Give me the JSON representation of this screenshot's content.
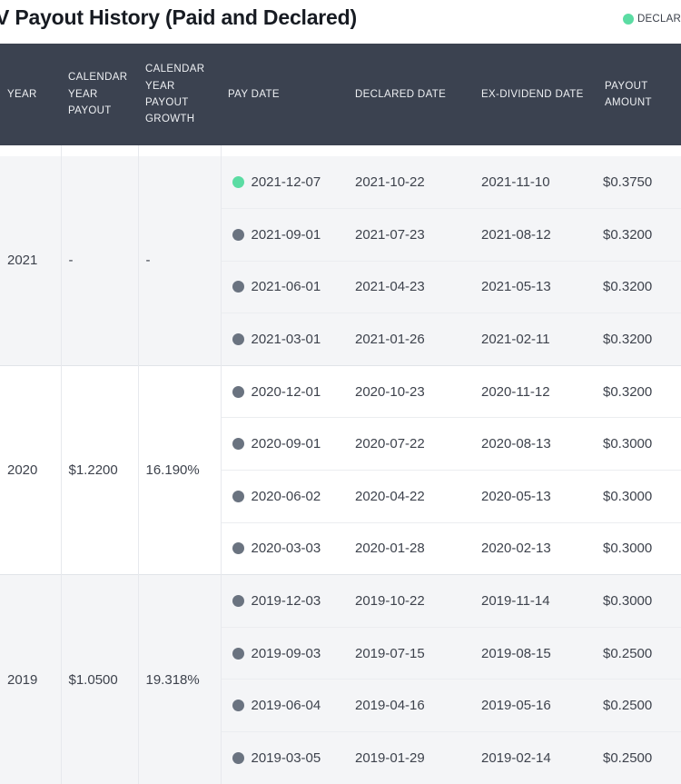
{
  "title": "V Payout History (Paid and Declared)",
  "legend": {
    "declared_label": "DECLARED"
  },
  "colors": {
    "header_bg": "#3b4250",
    "declared_dot": "#5bdca3",
    "paid_dot": "#6a7380",
    "group_shade_bg": "#f4f5f7"
  },
  "table": {
    "columns": [
      "YEAR",
      "CALENDAR YEAR PAYOUT",
      "CALENDAR YEAR PAYOUT GROWTH",
      "PAY DATE",
      "DECLARED DATE",
      "EX-DIVIDEND DATE",
      "PAYOUT AMOUNT"
    ],
    "groups": [
      {
        "year": "2021",
        "calendar_year_payout": "-",
        "calendar_year_payout_growth": "-",
        "rows": [
          {
            "status": "declared",
            "pay_date": "2021-12-07",
            "declared_date": "2021-10-22",
            "ex_dividend_date": "2021-11-10",
            "payout_amount": "$0.3750"
          },
          {
            "status": "paid",
            "pay_date": "2021-09-01",
            "declared_date": "2021-07-23",
            "ex_dividend_date": "2021-08-12",
            "payout_amount": "$0.3200"
          },
          {
            "status": "paid",
            "pay_date": "2021-06-01",
            "declared_date": "2021-04-23",
            "ex_dividend_date": "2021-05-13",
            "payout_amount": "$0.3200"
          },
          {
            "status": "paid",
            "pay_date": "2021-03-01",
            "declared_date": "2021-01-26",
            "ex_dividend_date": "2021-02-11",
            "payout_amount": "$0.3200"
          }
        ]
      },
      {
        "year": "2020",
        "calendar_year_payout": "$1.2200",
        "calendar_year_payout_growth": "16.190%",
        "rows": [
          {
            "status": "paid",
            "pay_date": "2020-12-01",
            "declared_date": "2020-10-23",
            "ex_dividend_date": "2020-11-12",
            "payout_amount": "$0.3200"
          },
          {
            "status": "paid",
            "pay_date": "2020-09-01",
            "declared_date": "2020-07-22",
            "ex_dividend_date": "2020-08-13",
            "payout_amount": "$0.3000"
          },
          {
            "status": "paid",
            "pay_date": "2020-06-02",
            "declared_date": "2020-04-22",
            "ex_dividend_date": "2020-05-13",
            "payout_amount": "$0.3000"
          },
          {
            "status": "paid",
            "pay_date": "2020-03-03",
            "declared_date": "2020-01-28",
            "ex_dividend_date": "2020-02-13",
            "payout_amount": "$0.3000"
          }
        ]
      },
      {
        "year": "2019",
        "calendar_year_payout": "$1.0500",
        "calendar_year_payout_growth": "19.318%",
        "rows": [
          {
            "status": "paid",
            "pay_date": "2019-12-03",
            "declared_date": "2019-10-22",
            "ex_dividend_date": "2019-11-14",
            "payout_amount": "$0.3000"
          },
          {
            "status": "paid",
            "pay_date": "2019-09-03",
            "declared_date": "2019-07-15",
            "ex_dividend_date": "2019-08-15",
            "payout_amount": "$0.2500"
          },
          {
            "status": "paid",
            "pay_date": "2019-06-04",
            "declared_date": "2019-04-16",
            "ex_dividend_date": "2019-05-16",
            "payout_amount": "$0.2500"
          },
          {
            "status": "paid",
            "pay_date": "2019-03-05",
            "declared_date": "2019-01-29",
            "ex_dividend_date": "2019-02-14",
            "payout_amount": "$0.2500"
          }
        ]
      }
    ]
  }
}
